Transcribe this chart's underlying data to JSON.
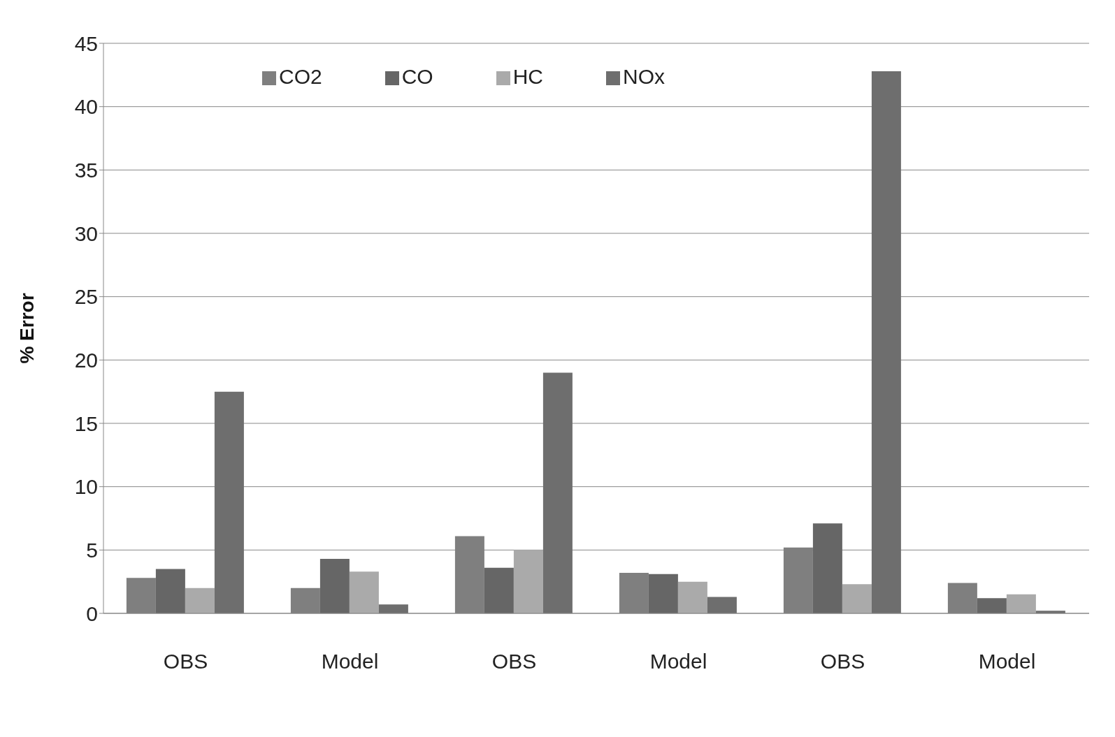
{
  "chart_data": {
    "type": "bar",
    "ylabel": "% Error",
    "categories": [
      "OBS",
      "Model",
      "OBS",
      "Model",
      "OBS",
      "Model"
    ],
    "series": [
      {
        "name": "CO2",
        "color": "#7f7f7f",
        "values": [
          2.8,
          2.0,
          6.1,
          3.2,
          5.2,
          2.4
        ]
      },
      {
        "name": "CO",
        "color": "#666666",
        "values": [
          3.5,
          4.3,
          3.6,
          3.1,
          7.1,
          1.2
        ]
      },
      {
        "name": "HC",
        "color": "#aaaaaa",
        "values": [
          2.0,
          3.3,
          5.0,
          2.5,
          2.3,
          1.5
        ]
      },
      {
        "name": "NOx",
        "color": "#6e6e6e",
        "values": [
          17.5,
          0.7,
          19.0,
          1.3,
          42.8,
          0.2
        ]
      }
    ],
    "ylim": [
      0,
      45
    ],
    "yticks": [
      0,
      5,
      10,
      15,
      20,
      25,
      30,
      35,
      40,
      45
    ],
    "grid": "y",
    "legend": "top"
  }
}
